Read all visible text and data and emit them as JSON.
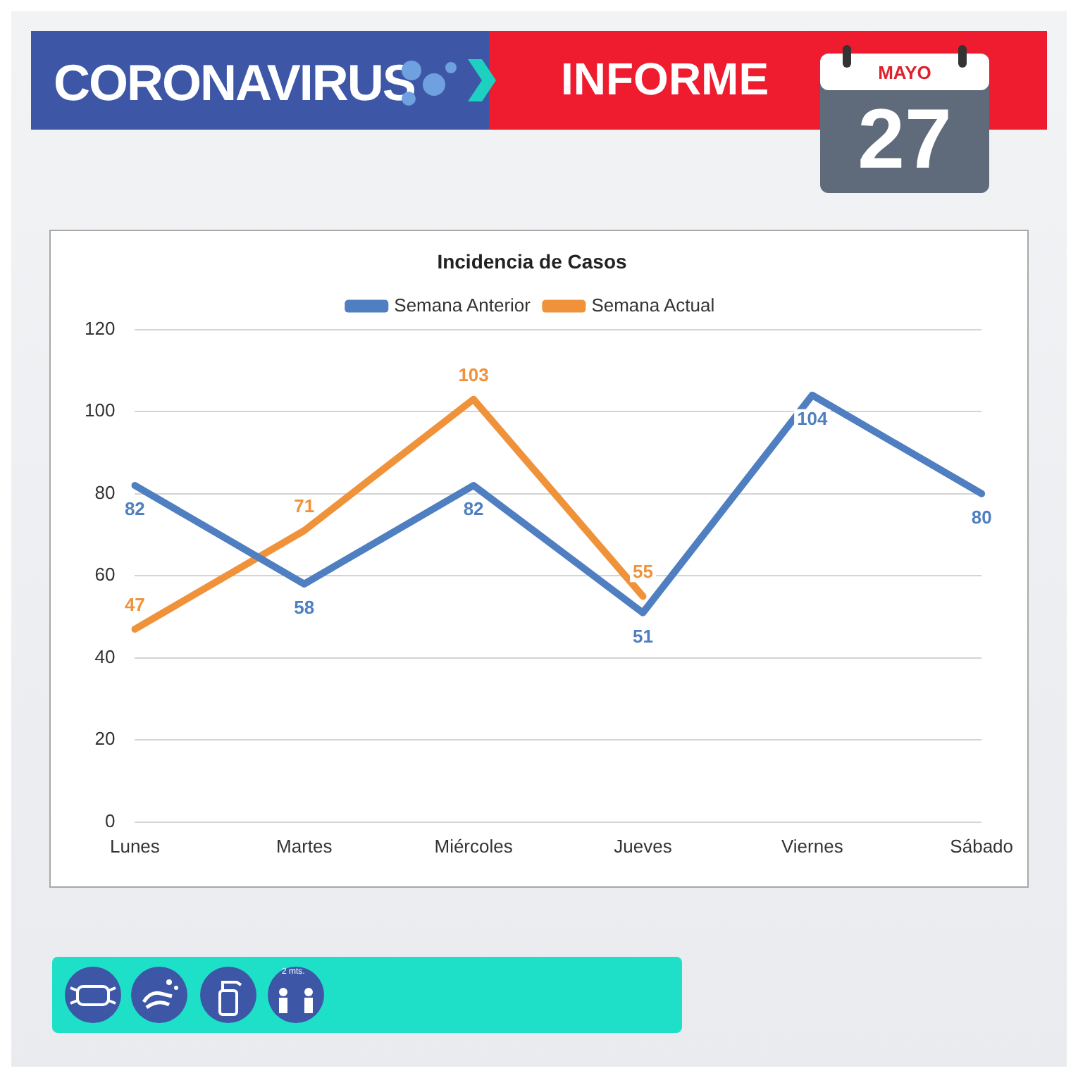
{
  "chart_data": {
    "type": "line",
    "title": "Incidencia de Casos",
    "categories": [
      "Lunes",
      "Martes",
      "Miércoles",
      "Jueves",
      "Viernes",
      "Sábado"
    ],
    "series": [
      {
        "name": "Semana Anterior",
        "color": "#4f7fc0",
        "values": [
          82,
          58,
          82,
          51,
          104,
          80
        ]
      },
      {
        "name": "Semana Actual",
        "color": "#f0923a",
        "values": [
          47,
          71,
          103,
          55,
          null,
          null
        ]
      }
    ],
    "ylim": [
      0,
      120
    ],
    "yticks": [
      0,
      20,
      40,
      60,
      80,
      100,
      120
    ],
    "grid": "y",
    "legend": "top",
    "marker": "none",
    "line_style": "solid",
    "data_labels": true,
    "annotations": [
      "CORONAVIRUS",
      "INFORME",
      "MAYO",
      "27",
      "2 mts."
    ]
  }
}
